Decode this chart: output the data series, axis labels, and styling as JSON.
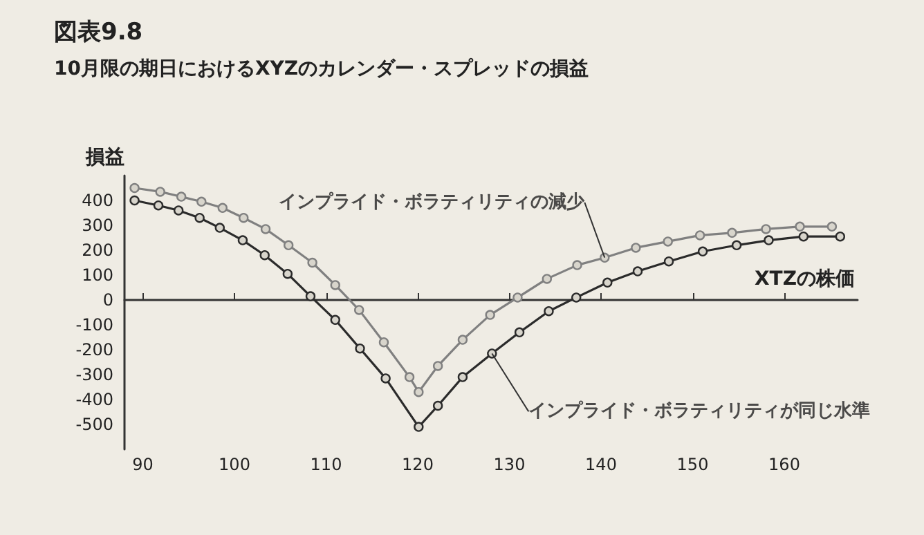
{
  "chart_data": {
    "type": "line",
    "title": "図表9.8",
    "subtitle": "10月限の期日におけるXYZのカレンダー・スプレッドの損益",
    "xlabel": "XTZの株価",
    "ylabel": "損益",
    "xlim": [
      88,
      168
    ],
    "xticks": [
      90,
      100,
      110,
      120,
      130,
      140,
      150,
      160
    ],
    "ylim": [
      -600,
      500
    ],
    "yticks": [
      -500,
      -400,
      -300,
      -200,
      -100,
      0,
      100,
      200,
      300,
      400
    ],
    "marker": "circle",
    "line_style": "solid",
    "series": [
      {
        "color": "#808080",
        "x": [
          89.1,
          91.9,
          94.2,
          96.4,
          98.7,
          101.0,
          103.4,
          105.9,
          108.5,
          111.0,
          113.6,
          116.3,
          119.1,
          120.1,
          122.2,
          124.9,
          127.9,
          130.9,
          134.1,
          137.4,
          140.4,
          143.8,
          147.3,
          150.8,
          154.3,
          158.0,
          161.7,
          165.2
        ],
        "values": [
          450,
          435,
          415,
          395,
          370,
          330,
          285,
          220,
          150,
          60,
          -40,
          -170,
          -310,
          -370,
          -265,
          -160,
          -60,
          10,
          85,
          140,
          170,
          210,
          235,
          260,
          270,
          285,
          295,
          295
        ]
      },
      {
        "color": "#2b2b2b",
        "x": [
          89.1,
          91.7,
          93.9,
          96.2,
          98.4,
          100.9,
          103.3,
          105.8,
          108.3,
          111.0,
          113.7,
          116.5,
          120.1,
          122.2,
          124.9,
          128.1,
          131.1,
          134.3,
          137.3,
          140.7,
          144.0,
          147.4,
          151.1,
          154.8,
          158.3,
          162.1,
          166.1
        ],
        "values": [
          400,
          380,
          360,
          330,
          290,
          240,
          180,
          105,
          15,
          -80,
          -195,
          -315,
          -510,
          -425,
          -310,
          -215,
          -130,
          -45,
          10,
          70,
          115,
          155,
          195,
          220,
          240,
          255,
          255
        ]
      }
    ],
    "annotations": [
      {
        "text": "インプライド・ボラティリティの減少",
        "x": 140.4,
        "y": 170
      },
      {
        "text": "インプライド・ボラティリティが同じ水準",
        "x": 128.1,
        "y": -215
      }
    ]
  }
}
